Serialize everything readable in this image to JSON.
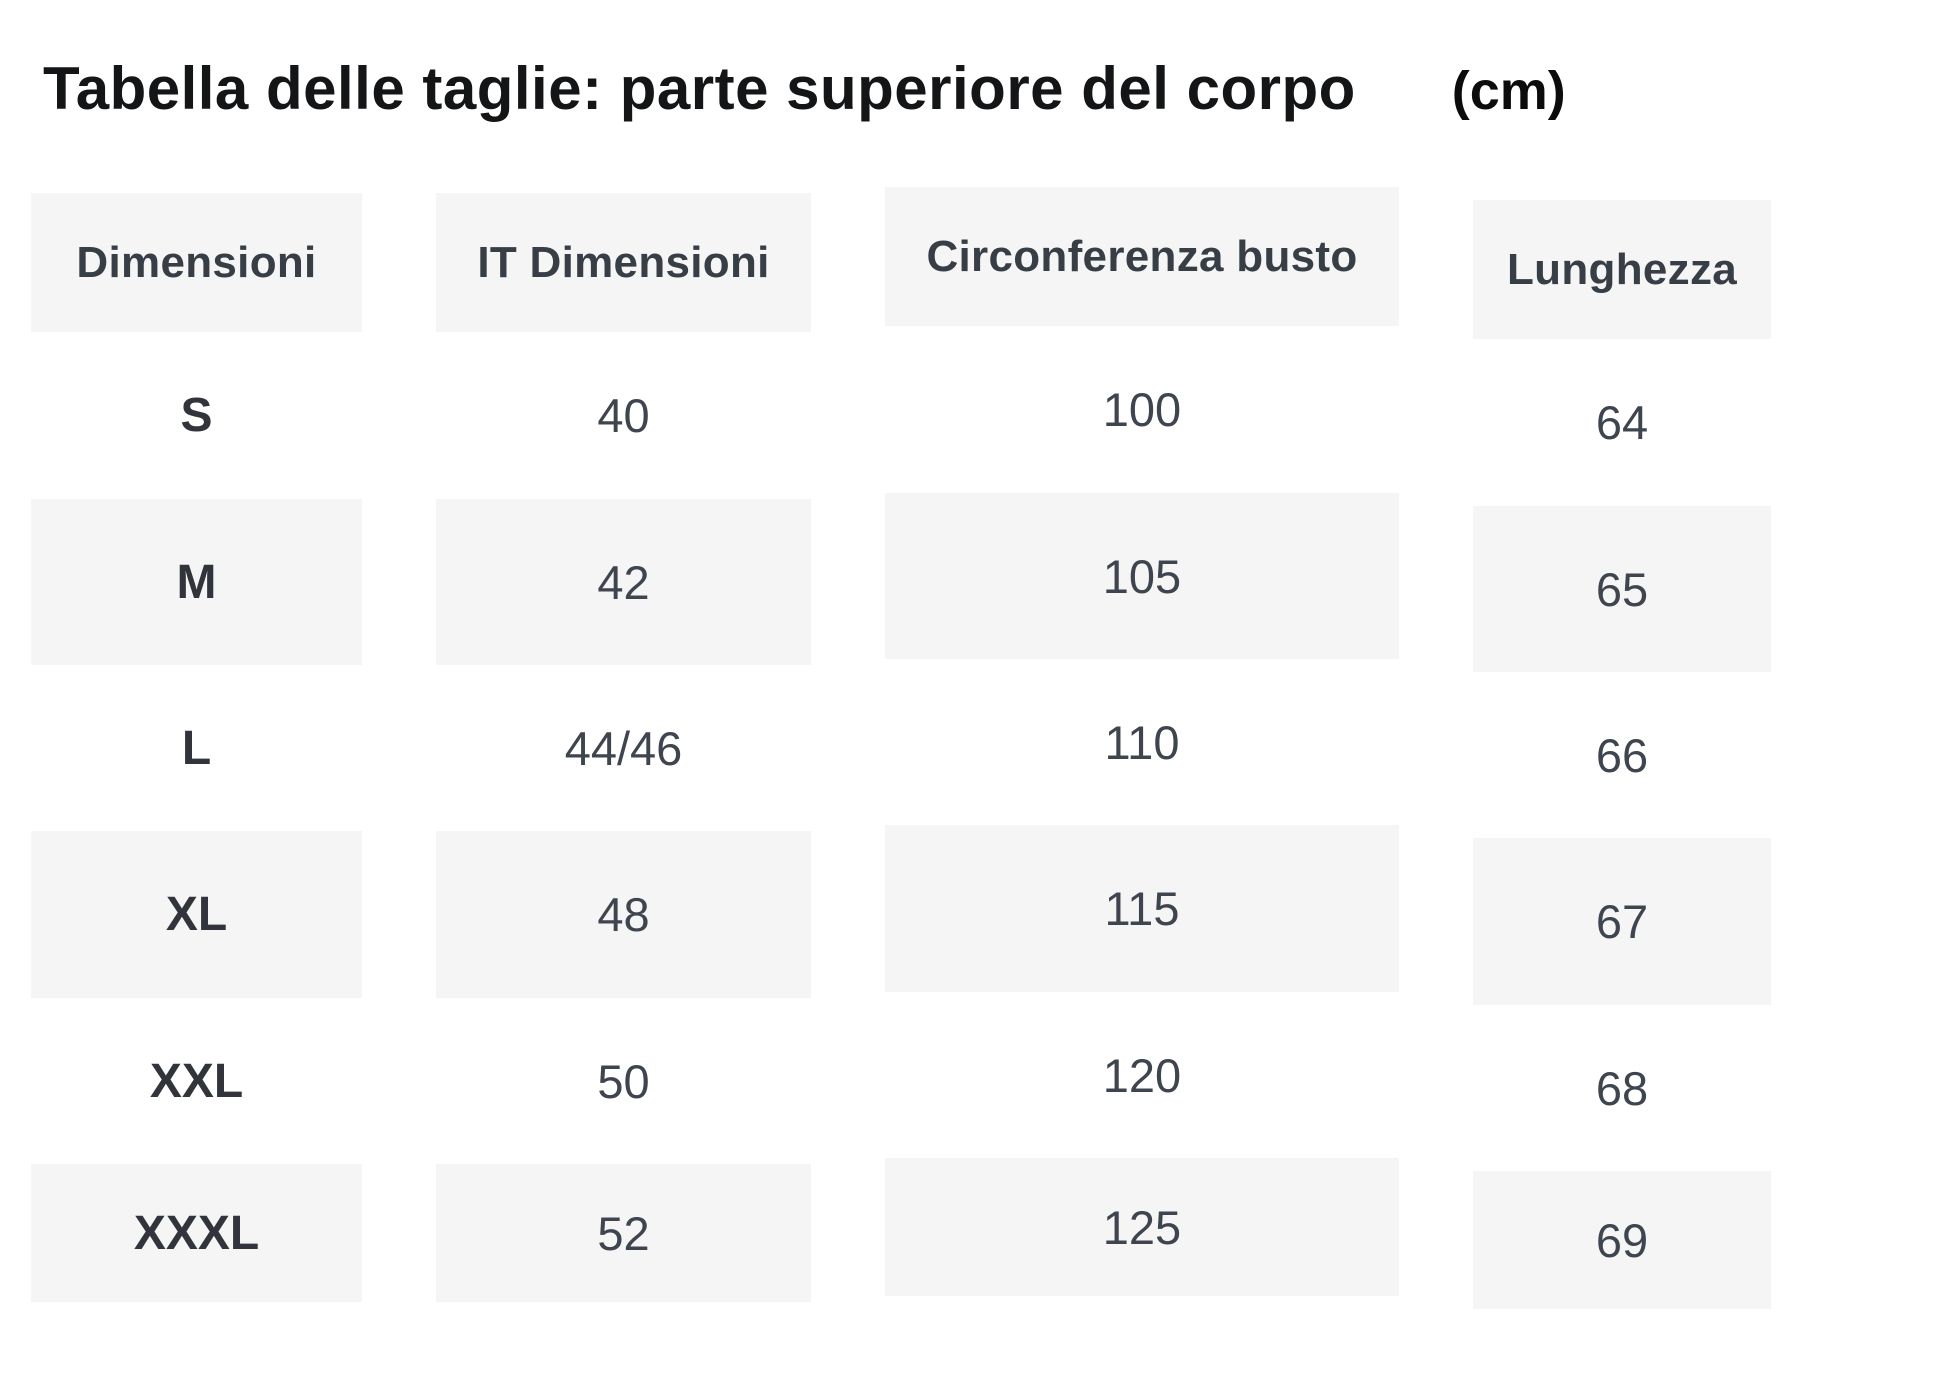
{
  "title": {
    "text": "Tabella delle taglie: parte superiore del corpo",
    "unit": "(cm)"
  },
  "table": {
    "columns": [
      "Dimensioni",
      "IT Dimensioni",
      "Circonferenza busto",
      "Lunghezza"
    ],
    "rows": [
      {
        "size": "S",
        "it_size": "40",
        "bust": "100",
        "length": "64"
      },
      {
        "size": "M",
        "it_size": "42",
        "bust": "105",
        "length": "65"
      },
      {
        "size": "L",
        "it_size": "44/46",
        "bust": "110",
        "length": "66"
      },
      {
        "size": "XL",
        "it_size": "48",
        "bust": "115",
        "length": "67"
      },
      {
        "size": "XXL",
        "it_size": "50",
        "bust": "120",
        "length": "68"
      },
      {
        "size": "XXXL",
        "it_size": "52",
        "bust": "125",
        "length": "69"
      }
    ]
  },
  "colors": {
    "cell_background": "#f5f5f6",
    "title_text": "#141517",
    "header_text": "#383e46",
    "size_label_text": "#31353b",
    "value_text": "#3f454e"
  }
}
